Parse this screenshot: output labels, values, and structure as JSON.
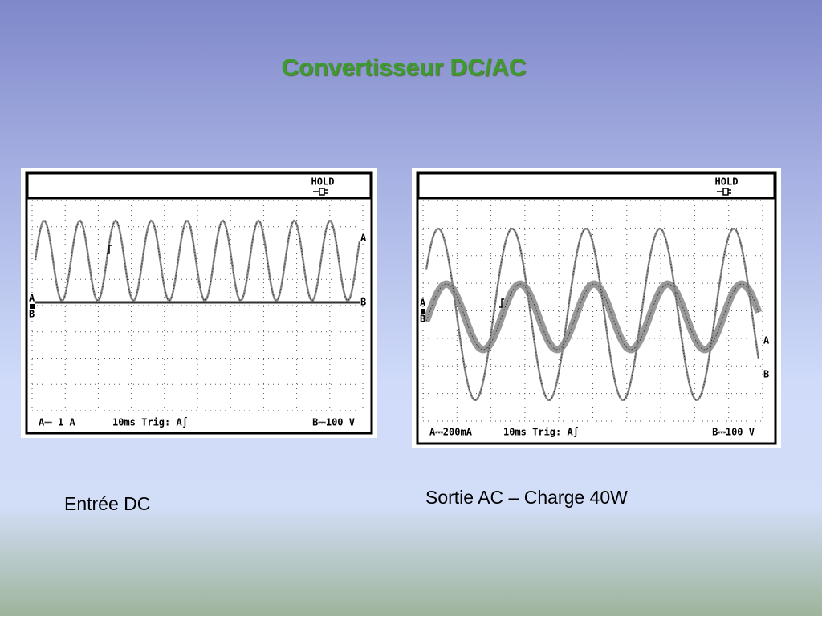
{
  "title": "Convertisseur DC/AC",
  "scopes": [
    {
      "caption": "Entrée DC",
      "hold": "HOLD",
      "trace_labels": [
        "A",
        "B"
      ],
      "status": [
        "A⎓ 1 A",
        "10ms Trig: A∫",
        "B⎓100 V"
      ]
    },
    {
      "caption": "Sortie AC – Charge 40W",
      "hold": "HOLD",
      "trace_labels": [
        "A",
        "B"
      ],
      "status": [
        "A⎓200mA",
        "10ms Trig: A∫",
        "B⎓100 V"
      ]
    }
  ]
}
